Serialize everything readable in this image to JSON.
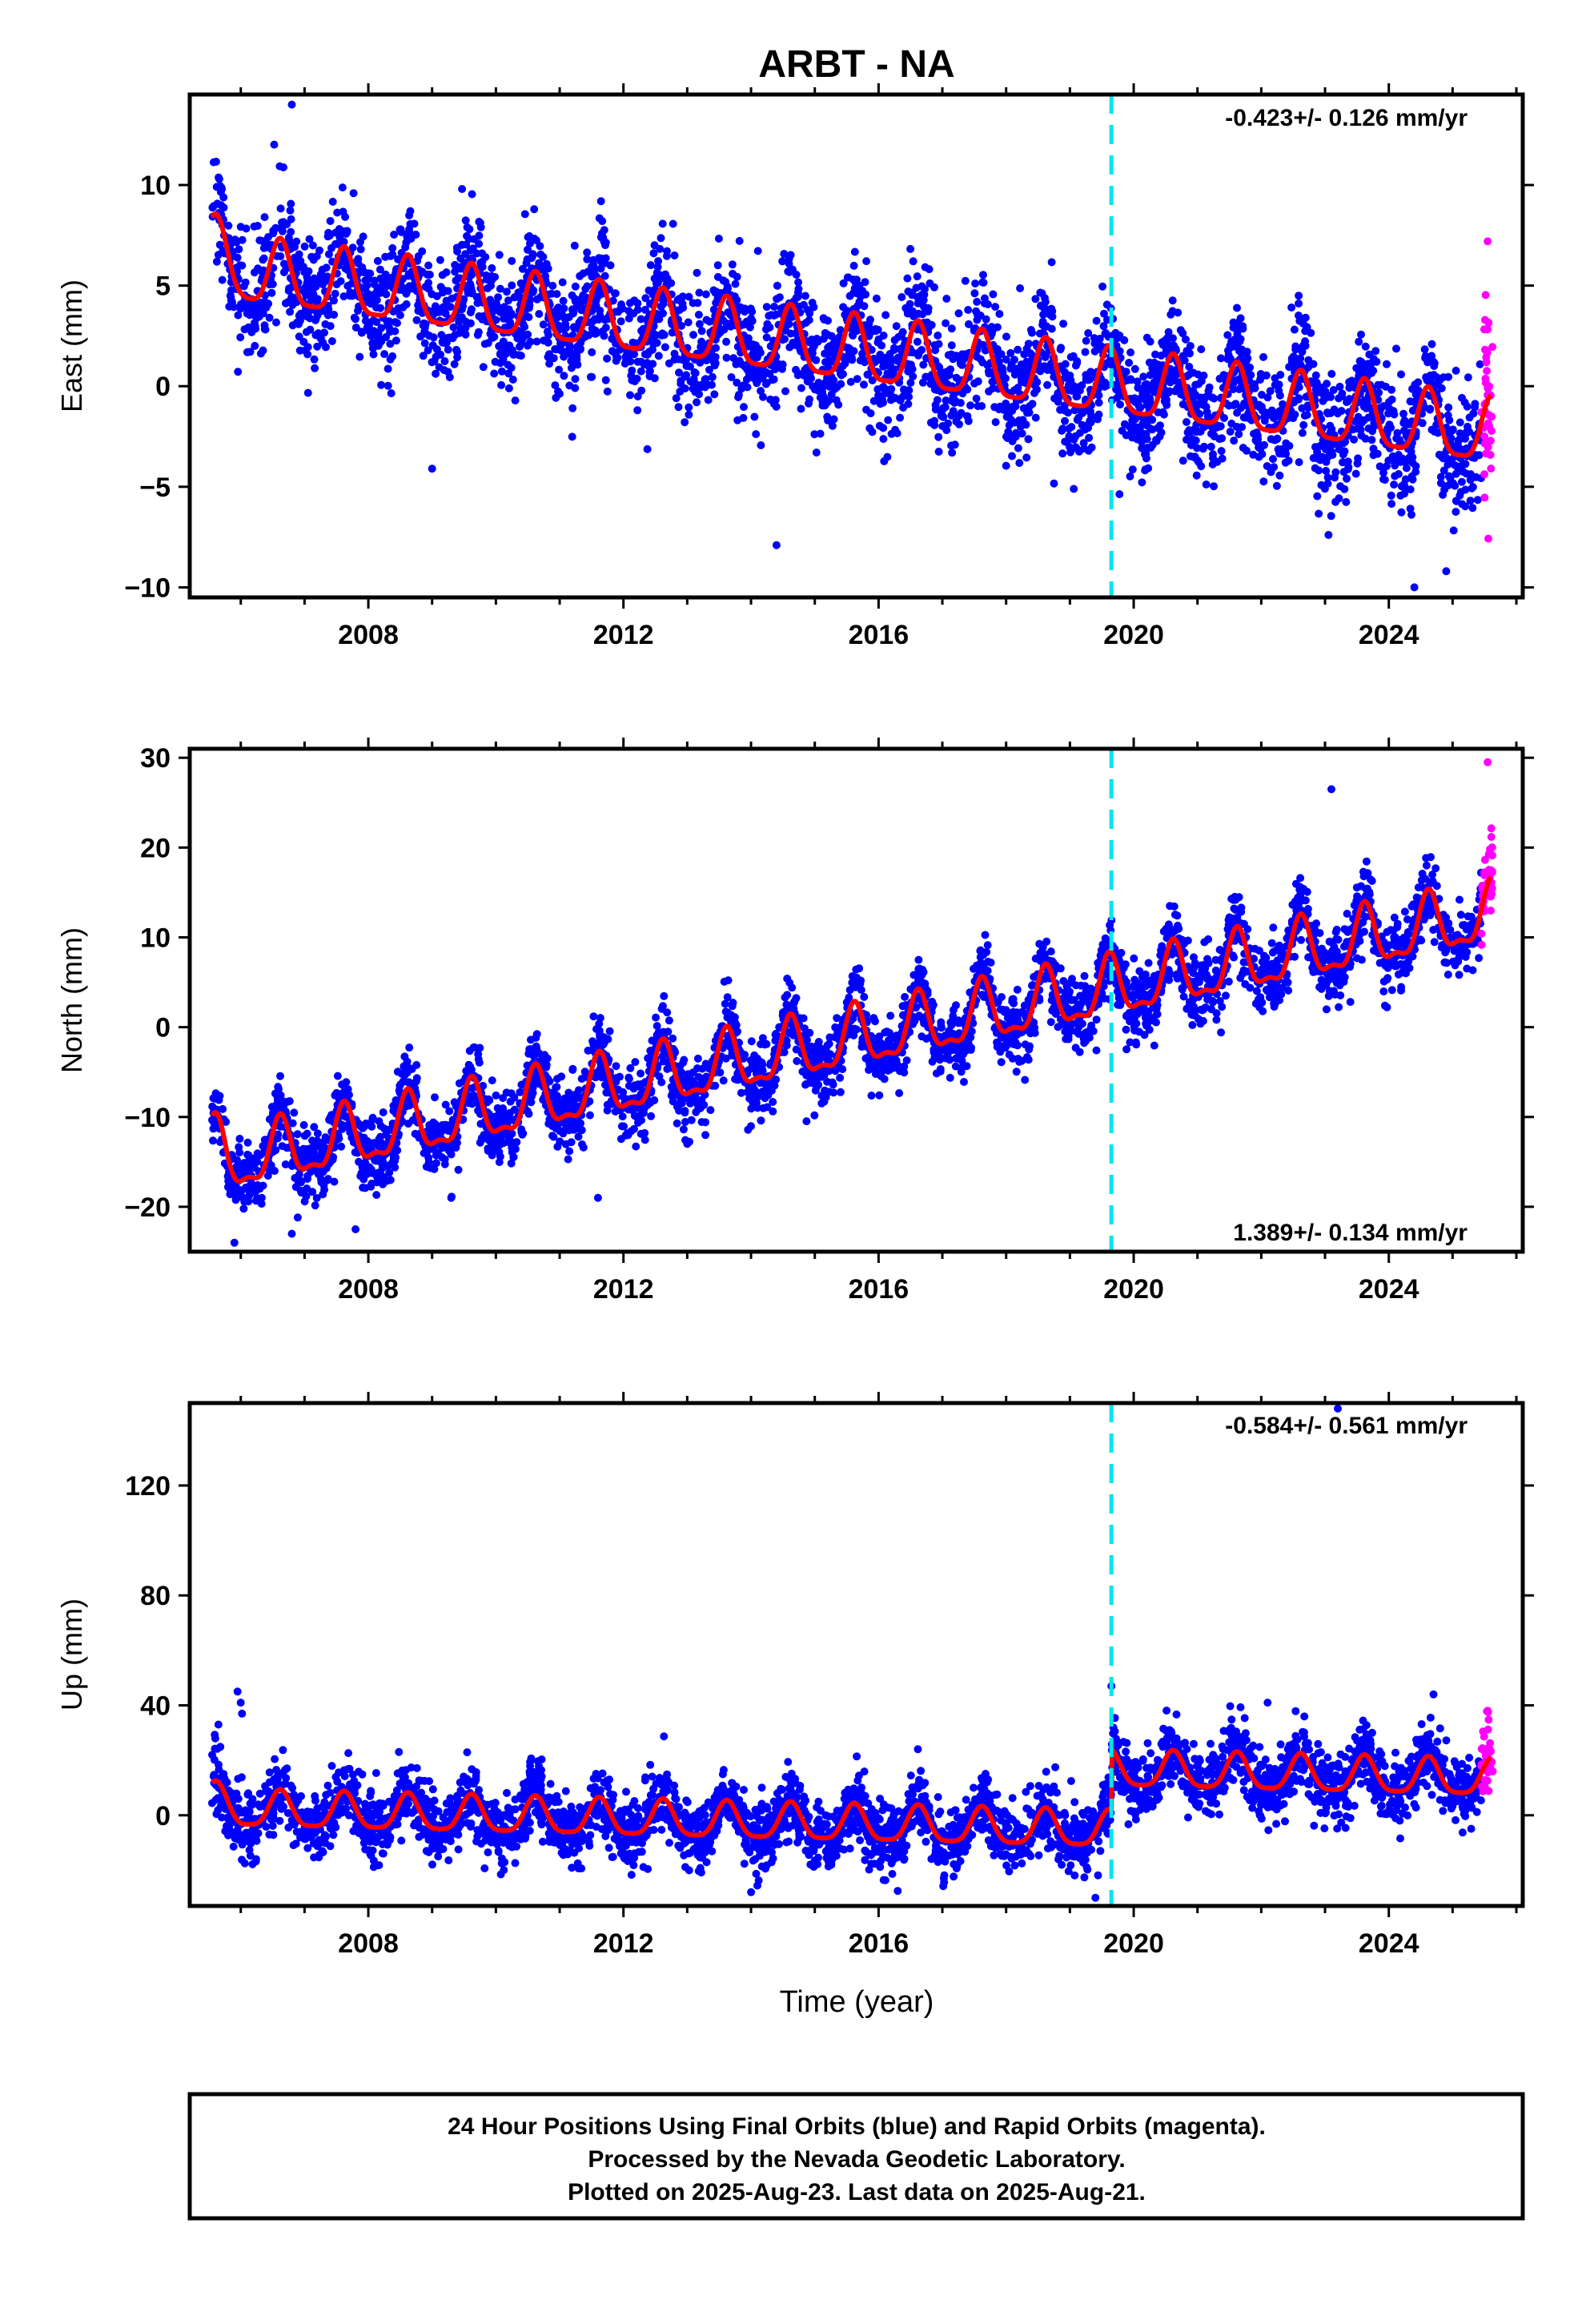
{
  "title": "ARBT - NA",
  "xlabel": "Time (year)",
  "footer": {
    "line1": "24 Hour Positions Using Final Orbits (blue) and Rapid Orbits (magenta).",
    "line2": "Processed by the Nevada Geodetic Laboratory.",
    "line3": "Plotted on 2025-Aug-23. Last data on 2025-Aug-21."
  },
  "colors": {
    "final": "#0000ff",
    "rapid": "#ff00ff",
    "model": "#ff0000",
    "event": "#00e5ee",
    "frame": "#000000"
  },
  "chart_data": [
    {
      "type": "scatter",
      "name": "east",
      "ylabel": "East (mm)",
      "rate_text": "-0.423+/- 0.126 mm/yr",
      "rate_position": "top-right",
      "xlim": [
        2005.2,
        2026.1
      ],
      "ylim": [
        -10.5,
        14.5
      ],
      "x_ticks": [
        2008,
        2012,
        2016,
        2020,
        2024
      ],
      "y_ticks": [
        -10,
        -5,
        0,
        5,
        10
      ],
      "event_x": 2019.65,
      "model": {
        "start": 2005.55,
        "end": 2025.6,
        "v0": 5.8,
        "trend": -0.41,
        "amplitude": 1.6,
        "semi": 0.4,
        "phase": 0.62,
        "steps": [],
        "start_bump": [
          2005.55,
          2006.1,
          1.8
        ]
      },
      "scatter": {
        "final_start": 2005.55,
        "final_end": 2025.45,
        "sigma": 1.5,
        "count": 3600,
        "rapid_start": 2025.45,
        "rapid_end": 2025.63,
        "rapid_sigma": 3.0,
        "rapid_count": 40
      },
      "outliers": [
        [
          2006.8,
          14.0
        ],
        [
          2014.4,
          -7.9
        ],
        [
          2024.4,
          -10.0
        ],
        [
          2009.0,
          -4.1
        ],
        [
          2012.8,
          6.5
        ],
        [
          2024.9,
          -9.2
        ],
        [
          2010.6,
          8.8
        ],
        [
          2025.55,
          7.2
        ]
      ]
    },
    {
      "type": "scatter",
      "name": "north",
      "ylabel": "North (mm)",
      "rate_text": "1.389+/- 0.134 mm/yr",
      "rate_position": "bottom-right",
      "xlim": [
        2005.2,
        2026.1
      ],
      "ylim": [
        -25,
        31
      ],
      "x_ticks": [
        2008,
        2012,
        2016,
        2020,
        2024
      ],
      "y_ticks": [
        -20,
        -10,
        0,
        10,
        20,
        30
      ],
      "event_x": 2019.65,
      "model": {
        "start": 2005.55,
        "end": 2025.6,
        "v0": -15.5,
        "trend": 1.39,
        "amplitude": 3.2,
        "semi": 1.2,
        "phase": 0.62,
        "steps": [],
        "start_bump": [
          2005.55,
          2005.8,
          4.0
        ]
      },
      "scatter": {
        "final_start": 2005.55,
        "final_end": 2025.45,
        "sigma": 1.9,
        "count": 3600,
        "rapid_start": 2025.45,
        "rapid_end": 2025.63,
        "rapid_sigma": 2.5,
        "rapid_count": 40
      },
      "outliers": [
        [
          2005.9,
          -24.0
        ],
        [
          2006.8,
          -23.0
        ],
        [
          2007.8,
          -22.5
        ],
        [
          2009.3,
          -19.0
        ],
        [
          2011.6,
          -19.0
        ],
        [
          2023.1,
          26.5
        ],
        [
          2025.55,
          29.5
        ],
        [
          2013.0,
          -13.0
        ]
      ]
    },
    {
      "type": "scatter",
      "name": "up",
      "ylabel": "Up (mm)",
      "rate_text": "-0.584+/- 0.561 mm/yr",
      "rate_position": "top-right",
      "xlim": [
        2005.2,
        2026.1
      ],
      "ylim": [
        -33,
        150
      ],
      "x_ticks": [
        2008,
        2012,
        2016,
        2020,
        2024
      ],
      "y_ticks": [
        0,
        40,
        80,
        120
      ],
      "event_x": 2019.65,
      "model": {
        "start": 2005.55,
        "end": 2025.6,
        "v0": 2.0,
        "trend": -0.55,
        "amplitude": 6.5,
        "semi": 1.5,
        "phase": 0.62,
        "steps": [
          [
            2019.65,
            22.0
          ]
        ],
        "start_bump": [
          2005.55,
          2006.0,
          6.0
        ]
      },
      "scatter": {
        "final_start": 2005.55,
        "final_end": 2025.45,
        "sigma": 6.0,
        "count": 3600,
        "rapid_start": 2025.45,
        "rapid_end": 2025.63,
        "rapid_sigma": 9.0,
        "rapid_count": 40
      },
      "outliers": [
        [
          2005.6,
          28.0
        ],
        [
          2005.65,
          33.0
        ],
        [
          2005.95,
          45.0
        ],
        [
          2006.0,
          41.0
        ],
        [
          2006.02,
          37.0
        ],
        [
          2019.65,
          47.0
        ],
        [
          2023.2,
          148.0
        ],
        [
          2024.7,
          44.0
        ],
        [
          2022.1,
          41.0
        ],
        [
          2025.55,
          38.0
        ],
        [
          2014.0,
          -28.0
        ],
        [
          2019.4,
          -30.0
        ]
      ]
    }
  ]
}
